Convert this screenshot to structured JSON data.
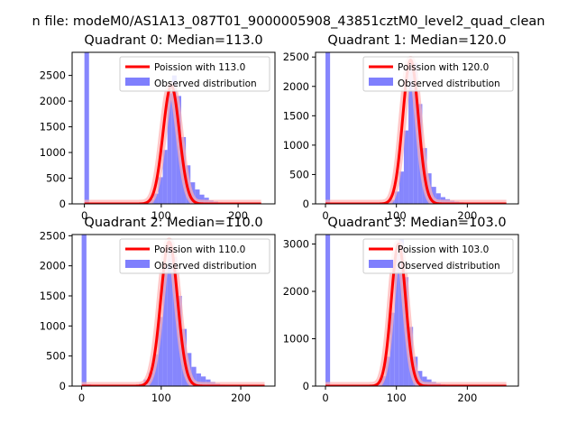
{
  "figure": {
    "suptitle": "n file: modeM0/AS1A13_087T01_9000005908_43851cztM0_level2_quad_clean",
    "colors": {
      "histogram": "#7f7ffd",
      "histogram_edge": "#6b6bf5",
      "poisson": "#ff0000",
      "poisson_glow": "#ffb0b0"
    }
  },
  "chart_data": [
    {
      "type": "bar",
      "title": "Quadrant 0: Median=113.0",
      "xlim": [
        -16,
        248
      ],
      "ylim": [
        0,
        2950
      ],
      "xticks": [
        0,
        100,
        200
      ],
      "yticks": [
        0,
        500,
        1000,
        1500,
        2000,
        2500
      ],
      "legend": {
        "placement": "top-right",
        "entries": [
          "Poission with 113.0",
          "Observed distribution"
        ]
      },
      "histogram": {
        "bin_width": 6,
        "bins": [
          [
            0,
            2950
          ],
          [
            6,
            12
          ],
          [
            12,
            8
          ],
          [
            18,
            6
          ],
          [
            24,
            4
          ],
          [
            30,
            3
          ],
          [
            36,
            3
          ],
          [
            42,
            3
          ],
          [
            48,
            4
          ],
          [
            54,
            5
          ],
          [
            60,
            6
          ],
          [
            66,
            8
          ],
          [
            72,
            15
          ],
          [
            78,
            35
          ],
          [
            84,
            90
          ],
          [
            90,
            200
          ],
          [
            96,
            520
          ],
          [
            102,
            1050
          ],
          [
            108,
            2150
          ],
          [
            114,
            2500
          ],
          [
            120,
            2100
          ],
          [
            126,
            1300
          ],
          [
            132,
            750
          ],
          [
            138,
            420
          ],
          [
            144,
            280
          ],
          [
            150,
            180
          ],
          [
            156,
            120
          ],
          [
            162,
            70
          ],
          [
            168,
            45
          ],
          [
            174,
            28
          ],
          [
            180,
            18
          ],
          [
            186,
            12
          ],
          [
            192,
            8
          ],
          [
            198,
            6
          ],
          [
            204,
            4
          ],
          [
            210,
            3
          ],
          [
            216,
            2
          ],
          [
            222,
            2
          ],
          [
            228,
            2
          ]
        ]
      },
      "poisson": {
        "mean": 113.0,
        "x_range": [
          0,
          230
        ],
        "peak": 2300
      }
    },
    {
      "type": "bar",
      "title": "Quadrant 1: Median=120.0",
      "xlim": [
        -14,
        272
      ],
      "ylim": [
        0,
        2580
      ],
      "xticks": [
        0,
        100,
        200
      ],
      "yticks": [
        0,
        500,
        1000,
        1500,
        2000,
        2500
      ],
      "legend": {
        "placement": "top-right",
        "entries": [
          "Poission with 120.0",
          "Observed distribution"
        ]
      },
      "histogram": {
        "bin_width": 6.5,
        "bins": [
          [
            0,
            2580
          ],
          [
            6.5,
            10
          ],
          [
            13,
            6
          ],
          [
            19.5,
            5
          ],
          [
            26,
            4
          ],
          [
            32.5,
            3
          ],
          [
            39,
            3
          ],
          [
            45.5,
            3
          ],
          [
            52,
            4
          ],
          [
            58.5,
            5
          ],
          [
            65,
            6
          ],
          [
            71.5,
            8
          ],
          [
            78,
            14
          ],
          [
            84.5,
            30
          ],
          [
            91,
            70
          ],
          [
            97.5,
            210
          ],
          [
            104,
            550
          ],
          [
            110.5,
            1250
          ],
          [
            117,
            2400
          ],
          [
            123.5,
            2400
          ],
          [
            130,
            1700
          ],
          [
            136.5,
            950
          ],
          [
            143,
            520
          ],
          [
            149.5,
            290
          ],
          [
            156,
            180
          ],
          [
            162.5,
            115
          ],
          [
            169,
            80
          ],
          [
            175.5,
            55
          ],
          [
            182,
            38
          ],
          [
            188.5,
            28
          ],
          [
            195,
            20
          ],
          [
            201.5,
            14
          ],
          [
            208,
            10
          ],
          [
            214.5,
            7
          ],
          [
            221,
            5
          ],
          [
            227.5,
            4
          ],
          [
            234,
            3
          ],
          [
            240.5,
            2
          ],
          [
            247,
            2
          ]
        ]
      },
      "poisson": {
        "mean": 120.0,
        "x_range": [
          0,
          255
        ],
        "peak": 2450
      }
    },
    {
      "type": "bar",
      "title": "Quadrant 2: Median=110.0",
      "xlim": [
        -12,
        243
      ],
      "ylim": [
        0,
        2520
      ],
      "xticks": [
        0,
        100,
        200
      ],
      "yticks": [
        0,
        500,
        1000,
        1500,
        2000,
        2500
      ],
      "legend": {
        "placement": "top-right",
        "entries": [
          "Poission with 110.0",
          "Observed distribution"
        ]
      },
      "histogram": {
        "bin_width": 6,
        "bins": [
          [
            0,
            2520
          ],
          [
            6,
            30
          ],
          [
            12,
            10
          ],
          [
            18,
            6
          ],
          [
            24,
            4
          ],
          [
            30,
            3
          ],
          [
            36,
            3
          ],
          [
            42,
            3
          ],
          [
            48,
            4
          ],
          [
            54,
            6
          ],
          [
            60,
            10
          ],
          [
            66,
            20
          ],
          [
            72,
            40
          ],
          [
            78,
            110
          ],
          [
            84,
            230
          ],
          [
            90,
            530
          ],
          [
            96,
            1150
          ],
          [
            102,
            2000
          ],
          [
            108,
            2400
          ],
          [
            114,
            2150
          ],
          [
            120,
            1500
          ],
          [
            126,
            950
          ],
          [
            132,
            550
          ],
          [
            138,
            320
          ],
          [
            144,
            210
          ],
          [
            150,
            160
          ],
          [
            156,
            110
          ],
          [
            162,
            70
          ],
          [
            168,
            40
          ],
          [
            174,
            25
          ],
          [
            180,
            15
          ],
          [
            186,
            10
          ],
          [
            192,
            7
          ],
          [
            198,
            5
          ],
          [
            204,
            4
          ],
          [
            210,
            3
          ],
          [
            216,
            2
          ],
          [
            222,
            2
          ]
        ]
      },
      "poisson": {
        "mean": 110.0,
        "x_range": [
          0,
          230
        ],
        "peak": 2400
      }
    },
    {
      "type": "bar",
      "title": "Quadrant 3: Median=103.0",
      "xlim": [
        -14,
        272
      ],
      "ylim": [
        0,
        3200
      ],
      "xticks": [
        0,
        100,
        200
      ],
      "yticks": [
        0,
        1000,
        2000,
        3000
      ],
      "legend": {
        "placement": "top-right",
        "entries": [
          "Poission with 103.0",
          "Observed distribution"
        ]
      },
      "histogram": {
        "bin_width": 6.5,
        "bins": [
          [
            0,
            3200
          ],
          [
            6.5,
            15
          ],
          [
            13,
            8
          ],
          [
            19.5,
            5
          ],
          [
            26,
            4
          ],
          [
            32.5,
            3
          ],
          [
            39,
            3
          ],
          [
            45.5,
            4
          ],
          [
            52,
            5
          ],
          [
            58.5,
            8
          ],
          [
            65,
            25
          ],
          [
            71.5,
            60
          ],
          [
            78,
            210
          ],
          [
            84.5,
            620
          ],
          [
            91,
            1550
          ],
          [
            97.5,
            2800
          ],
          [
            104,
            3100
          ],
          [
            110.5,
            2300
          ],
          [
            117,
            1250
          ],
          [
            123.5,
            620
          ],
          [
            130,
            320
          ],
          [
            136.5,
            200
          ],
          [
            143,
            140
          ],
          [
            149.5,
            90
          ],
          [
            156,
            55
          ],
          [
            162.5,
            35
          ],
          [
            169,
            22
          ],
          [
            175.5,
            14
          ],
          [
            182,
            9
          ],
          [
            188.5,
            6
          ],
          [
            195,
            5
          ],
          [
            201.5,
            4
          ],
          [
            208,
            3
          ],
          [
            214.5,
            2
          ],
          [
            221,
            2
          ],
          [
            227.5,
            2
          ],
          [
            234,
            2
          ],
          [
            240.5,
            2
          ],
          [
            247,
            2
          ]
        ]
      },
      "poisson": {
        "mean": 103.0,
        "x_range": [
          0,
          255
        ],
        "peak": 3000
      }
    }
  ]
}
